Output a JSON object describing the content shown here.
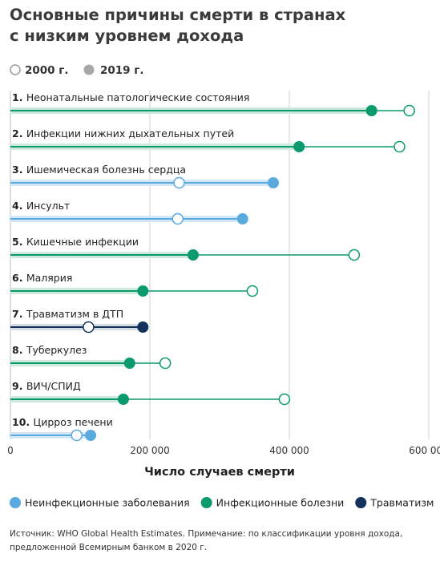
{
  "title": {
    "line1": "Основные причины смерти в странах",
    "line2": "с низким уровнем дохода"
  },
  "year_legend": [
    {
      "label": "2000 г.",
      "style": "open"
    },
    {
      "label": "2019 г.",
      "style": "filled"
    }
  ],
  "chart_data": {
    "type": "dumbbell",
    "xlabel": "Число случаев смерти",
    "xlim": [
      0,
      600000
    ],
    "xticks": [
      {
        "value": 0,
        "label": "0"
      },
      {
        "value": 200000,
        "label": "200 000"
      },
      {
        "value": 400000,
        "label": "400 000"
      },
      {
        "value": 600000,
        "label": "600 000"
      }
    ],
    "grid": true,
    "categories": [
      {
        "rank": "1.",
        "name": "Неонатальные патологические состояния",
        "group": "infectious",
        "v2000": 572000,
        "v2019": 518000
      },
      {
        "rank": "2.",
        "name": "Инфекции нижних дыхательных путей",
        "group": "infectious",
        "v2000": 558000,
        "v2019": 414000
      },
      {
        "rank": "3.",
        "name": "Ишемическая болезнь сердца",
        "group": "noninfectious",
        "v2000": 242000,
        "v2019": 377000
      },
      {
        "rank": "4.",
        "name": "Инсульт",
        "group": "noninfectious",
        "v2000": 240000,
        "v2019": 333000
      },
      {
        "rank": "5.",
        "name": "Кишечные инфекции",
        "group": "infectious",
        "v2000": 493000,
        "v2019": 262000
      },
      {
        "rank": "6.",
        "name": "Малярия",
        "group": "infectious",
        "v2000": 347000,
        "v2019": 190000
      },
      {
        "rank": "7.",
        "name": "Травматизм в ДТП",
        "group": "injury",
        "v2000": 112000,
        "v2019": 190000
      },
      {
        "rank": "8.",
        "name": "Туберкулез",
        "group": "infectious",
        "v2000": 222000,
        "v2019": 171000
      },
      {
        "rank": "9.",
        "name": "ВИЧ/СПИД",
        "group": "infectious",
        "v2000": 393000,
        "v2019": 162000
      },
      {
        "rank": "10.",
        "name": "Цирроз печени",
        "group": "noninfectious",
        "v2000": 95000,
        "v2019": 115000
      }
    ],
    "groups": {
      "noninfectious": {
        "label": "Неинфекционные заболевания",
        "color": "#5aaae0",
        "band": "#d3e8f7"
      },
      "infectious": {
        "label": "Инфекционные болезни",
        "color": "#0a9a6e",
        "band": "#cdeadd"
      },
      "injury": {
        "label": "Травматизм",
        "color": "#13325b",
        "band": "#d7dbe3"
      }
    },
    "legend_order": [
      "noninfectious",
      "infectious",
      "injury"
    ]
  },
  "source": "Источник: WHO Global Health Estimates. Примечание: по классификации уровня дохода, предложенной Всемирным банком в 2020 г."
}
